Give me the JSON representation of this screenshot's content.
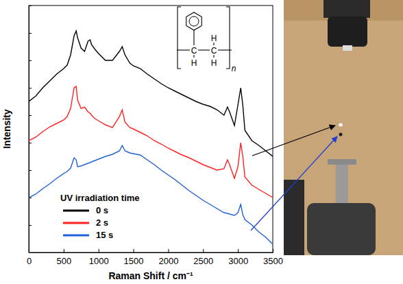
{
  "chart_data": {
    "type": "line",
    "xlabel": "Raman Shift / cm⁻¹",
    "ylabel": "Intensity",
    "x": [
      0,
      100,
      200,
      300,
      400,
      500,
      550,
      600,
      650,
      680,
      700,
      750,
      800,
      850,
      880,
      900,
      950,
      1000,
      1100,
      1200,
      1300,
      1340,
      1380,
      1450,
      1500,
      1600,
      1700,
      1800,
      1900,
      2000,
      2100,
      2200,
      2300,
      2400,
      2500,
      2600,
      2700,
      2800,
      2850,
      2880,
      2950,
      3000,
      3040,
      3070,
      3100,
      3200,
      3300,
      3400,
      3500
    ],
    "series": [
      {
        "name": "0 s",
        "color": "#000000",
        "values": [
          220,
          228,
          240,
          250,
          260,
          268,
          273,
          288,
          316,
          323,
          313,
          298,
          293,
          308,
          310,
          303,
          296,
          290,
          280,
          280,
          293,
          300,
          288,
          276,
          272,
          268,
          260,
          253,
          246,
          240,
          235,
          230,
          225,
          220,
          216,
          213,
          208,
          200,
          212,
          205,
          185,
          215,
          240,
          215,
          178,
          163,
          156,
          148,
          140
        ]
      },
      {
        "name": "2 s",
        "color": "#ff2020",
        "values": [
          163,
          168,
          176,
          183,
          188,
          193,
          198,
          210,
          240,
          242,
          222,
          210,
          212,
          205,
          203,
          200,
          195,
          192,
          186,
          182,
          198,
          208,
          190,
          182,
          180,
          175,
          170,
          163,
          158,
          152,
          147,
          142,
          138,
          133,
          128,
          124,
          120,
          122,
          135,
          128,
          108,
          125,
          160,
          140,
          110,
          98,
          92,
          86,
          80
        ]
      },
      {
        "name": "15 s",
        "color": "#1f5fd8",
        "values": [
          80,
          85,
          93,
          100,
          108,
          115,
          118,
          123,
          138,
          135,
          125,
          126,
          128,
          130,
          131,
          132,
          134,
          136,
          140,
          143,
          148,
          156,
          148,
          145,
          144,
          142,
          135,
          128,
          120,
          113,
          106,
          98,
          90,
          83,
          76,
          70,
          64,
          58,
          57,
          56,
          54,
          58,
          70,
          55,
          48,
          40,
          30,
          22,
          12
        ]
      }
    ],
    "xlim": [
      0,
      3500
    ],
    "xticks": [
      0,
      500,
      1000,
      1500,
      2000,
      2500,
      3000,
      3500
    ],
    "ylim": [
      0,
      360
    ],
    "yticks": [
      0,
      40,
      80,
      120,
      160,
      200,
      240,
      280,
      320,
      360
    ],
    "tick_labels": "x",
    "legend": "lower left",
    "legend_title": "UV irradiation time",
    "annotations": [
      "C",
      "C",
      "H",
      "H",
      "H",
      "n"
    ]
  }
}
